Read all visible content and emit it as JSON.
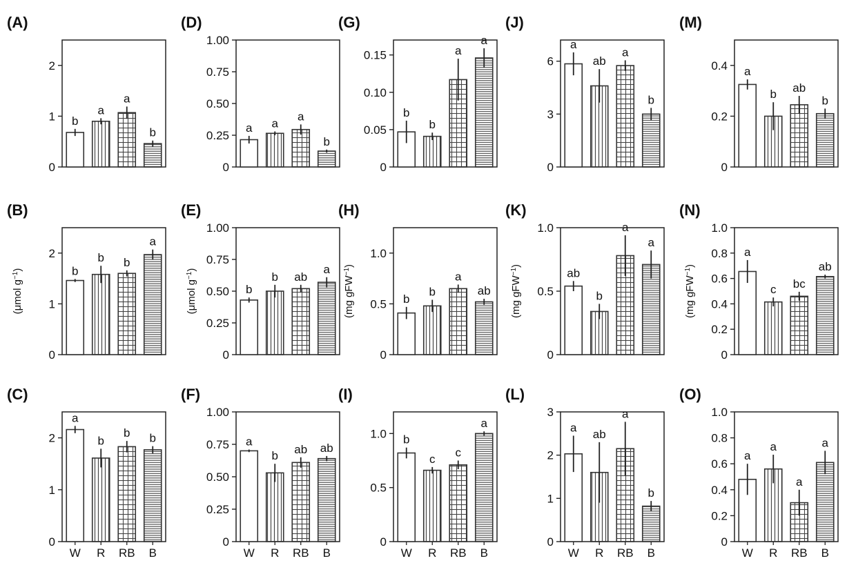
{
  "figure": {
    "categories": [
      "W",
      "R",
      "RB",
      "B"
    ],
    "colors": {
      "axis": "#222222",
      "bar_stroke": "#333333",
      "bar_fill": "#ffffff",
      "pattern": "#444444"
    },
    "bar_patterns": [
      "plain",
      "vertical-lines",
      "grid",
      "horizontal-lines"
    ]
  },
  "chart_data": [
    {
      "panel": "(A)",
      "type": "bar",
      "categories": [
        "W",
        "R",
        "RB",
        "B"
      ],
      "ylim": [
        0,
        2.5
      ],
      "yticks": [
        0,
        1,
        2
      ],
      "ytick_labels": [
        "0",
        "1",
        "2"
      ],
      "ylabel": "",
      "xlabel": "",
      "values": [
        0.68,
        0.9,
        1.07,
        0.46
      ],
      "errors": [
        0.07,
        0.06,
        0.12,
        0.06
      ],
      "letters": [
        "b",
        "a",
        "a",
        "b"
      ]
    },
    {
      "panel": "(B)",
      "type": "bar",
      "categories": [
        "W",
        "R",
        "RB",
        "B"
      ],
      "ylim": [
        0,
        2.5
      ],
      "yticks": [
        0,
        1,
        2
      ],
      "ytick_labels": [
        "0",
        "1",
        "2"
      ],
      "ylabel": "(μmol g−1)",
      "xlabel": "",
      "values": [
        1.46,
        1.58,
        1.6,
        1.97
      ],
      "errors": [
        0.03,
        0.17,
        0.06,
        0.1
      ],
      "letters": [
        "b",
        "b",
        "b",
        "a"
      ]
    },
    {
      "panel": "(C)",
      "type": "bar",
      "categories": [
        "W",
        "R",
        "RB",
        "B"
      ],
      "ylim": [
        0,
        2.5
      ],
      "yticks": [
        0,
        1,
        2
      ],
      "ytick_labels": [
        "0",
        "1",
        "2"
      ],
      "ylabel": "",
      "xlabel": "",
      "values": [
        2.16,
        1.61,
        1.83,
        1.77
      ],
      "errors": [
        0.07,
        0.18,
        0.11,
        0.07
      ],
      "letters": [
        "a",
        "b",
        "b",
        "b"
      ]
    },
    {
      "panel": "(D)",
      "type": "bar",
      "categories": [
        "W",
        "R",
        "RB",
        "B"
      ],
      "ylim": [
        0,
        1.0
      ],
      "yticks": [
        0,
        0.25,
        0.5,
        0.75,
        1.0
      ],
      "ytick_labels": [
        "0",
        "0.25",
        "0.50",
        "0.75",
        "1.00"
      ],
      "ylabel": "",
      "xlabel": "",
      "values": [
        0.215,
        0.265,
        0.295,
        0.125
      ],
      "errors": [
        0.03,
        0.015,
        0.04,
        0.012
      ],
      "letters": [
        "a",
        "a",
        "a",
        "b"
      ]
    },
    {
      "panel": "(E)",
      "type": "bar",
      "categories": [
        "W",
        "R",
        "RB",
        "B"
      ],
      "ylim": [
        0,
        1.0
      ],
      "yticks": [
        0,
        0.25,
        0.5,
        0.75,
        1.0
      ],
      "ytick_labels": [
        "0",
        "0.25",
        "0.50",
        "0.75",
        "1.00"
      ],
      "ylabel": "(μmol g−1)",
      "xlabel": "",
      "values": [
        0.43,
        0.5,
        0.52,
        0.57
      ],
      "errors": [
        0.02,
        0.05,
        0.03,
        0.04
      ],
      "letters": [
        "b",
        "b",
        "ab",
        "a"
      ]
    },
    {
      "panel": "(F)",
      "type": "bar",
      "categories": [
        "W",
        "R",
        "RB",
        "B"
      ],
      "ylim": [
        0,
        1.0
      ],
      "yticks": [
        0,
        0.25,
        0.5,
        0.75,
        1.0
      ],
      "ytick_labels": [
        "0",
        "0.25",
        "0.50",
        "0.75",
        "1.00"
      ],
      "ylabel": "",
      "xlabel": "",
      "values": [
        0.7,
        0.53,
        0.61,
        0.64
      ],
      "errors": [
        0.01,
        0.07,
        0.04,
        0.02
      ],
      "letters": [
        "a",
        "b",
        "ab",
        "ab"
      ]
    },
    {
      "panel": "(G)",
      "type": "bar",
      "categories": [
        "W",
        "R",
        "RB",
        "B"
      ],
      "ylim": [
        0,
        0.17
      ],
      "yticks": [
        0,
        0.05,
        0.1,
        0.15
      ],
      "ytick_labels": [
        "0",
        "0.05",
        "0.10",
        "0.15"
      ],
      "ylabel": "",
      "xlabel": "",
      "values": [
        0.047,
        0.041,
        0.117,
        0.146
      ],
      "errors": [
        0.015,
        0.005,
        0.028,
        0.013
      ],
      "letters": [
        "b",
        "b",
        "a",
        "a"
      ]
    },
    {
      "panel": "(H)",
      "type": "bar",
      "categories": [
        "W",
        "R",
        "RB",
        "B"
      ],
      "ylim": [
        0,
        1.25
      ],
      "yticks": [
        0,
        0.5,
        1.0
      ],
      "ytick_labels": [
        "0",
        "0.5",
        "1.0"
      ],
      "ylabel": "(mg gFW−1)",
      "xlabel": "",
      "values": [
        0.41,
        0.48,
        0.65,
        0.52
      ],
      "errors": [
        0.06,
        0.06,
        0.04,
        0.03
      ],
      "letters": [
        "b",
        "b",
        "a",
        "ab"
      ]
    },
    {
      "panel": "(I)",
      "type": "bar",
      "categories": [
        "W",
        "R",
        "RB",
        "B"
      ],
      "ylim": [
        0,
        1.2
      ],
      "yticks": [
        0,
        0.5,
        1.0
      ],
      "ytick_labels": [
        "0",
        "0.5",
        "1.0"
      ],
      "ylabel": "",
      "xlabel": "",
      "values": [
        0.82,
        0.66,
        0.71,
        1.0
      ],
      "errors": [
        0.05,
        0.03,
        0.04,
        0.02
      ],
      "letters": [
        "b",
        "c",
        "c",
        "a"
      ]
    },
    {
      "panel": "(J)",
      "type": "bar",
      "categories": [
        "W",
        "R",
        "RB",
        "B"
      ],
      "ylim": [
        0,
        7.2
      ],
      "yticks": [
        0,
        3,
        6
      ],
      "ytick_labels": [
        "0",
        "3",
        "6"
      ],
      "ylabel": "",
      "xlabel": "",
      "values": [
        5.85,
        4.6,
        5.75,
        3.0
      ],
      "errors": [
        0.65,
        0.95,
        0.3,
        0.35
      ],
      "letters": [
        "a",
        "ab",
        "a",
        "b"
      ]
    },
    {
      "panel": "(K)",
      "type": "bar",
      "categories": [
        "W",
        "R",
        "RB",
        "B"
      ],
      "ylim": [
        0,
        1.0
      ],
      "yticks": [
        0,
        0.5,
        1.0
      ],
      "ytick_labels": [
        "0",
        "0.5",
        "1.0"
      ],
      "ylabel": "(mg gFW−1)",
      "xlabel": "",
      "values": [
        0.54,
        0.34,
        0.78,
        0.71
      ],
      "errors": [
        0.04,
        0.06,
        0.16,
        0.11
      ],
      "letters": [
        "ab",
        "b",
        "a",
        "a"
      ]
    },
    {
      "panel": "(L)",
      "type": "bar",
      "categories": [
        "W",
        "R",
        "RB",
        "B"
      ],
      "ylim": [
        0,
        3
      ],
      "yticks": [
        0,
        1,
        2,
        3
      ],
      "ytick_labels": [
        "0",
        "1",
        "2",
        "3"
      ],
      "ylabel": "",
      "xlabel": "",
      "values": [
        2.03,
        1.6,
        2.15,
        0.82
      ],
      "errors": [
        0.42,
        0.7,
        0.62,
        0.12
      ],
      "letters": [
        "a",
        "ab",
        "a",
        "b"
      ]
    },
    {
      "panel": "(M)",
      "type": "bar",
      "categories": [
        "W",
        "R",
        "RB",
        "B"
      ],
      "ylim": [
        0,
        0.5
      ],
      "yticks": [
        0,
        0.2,
        0.4
      ],
      "ytick_labels": [
        "0",
        "0.2",
        "0.4"
      ],
      "ylabel": "",
      "xlabel": "",
      "values": [
        0.325,
        0.2,
        0.245,
        0.21
      ],
      "errors": [
        0.02,
        0.055,
        0.035,
        0.02
      ],
      "letters": [
        "a",
        "b",
        "ab",
        "b"
      ]
    },
    {
      "panel": "(N)",
      "type": "bar",
      "categories": [
        "W",
        "R",
        "RB",
        "B"
      ],
      "ylim": [
        0,
        1.0
      ],
      "yticks": [
        0,
        0.2,
        0.4,
        0.6,
        0.8,
        1.0
      ],
      "ytick_labels": [
        "0",
        "0.2",
        "0.4",
        "0.6",
        "0.8",
        "1.0"
      ],
      "ylabel": "(mg gFW−1)",
      "xlabel": "",
      "values": [
        0.655,
        0.415,
        0.46,
        0.615
      ],
      "errors": [
        0.09,
        0.035,
        0.035,
        0.015
      ],
      "letters": [
        "a",
        "c",
        "bc",
        "ab"
      ]
    },
    {
      "panel": "(O)",
      "type": "bar",
      "categories": [
        "W",
        "R",
        "RB",
        "B"
      ],
      "ylim": [
        0,
        1.0
      ],
      "yticks": [
        0,
        0.2,
        0.4,
        0.6,
        0.8,
        1.0
      ],
      "ytick_labels": [
        "0",
        "0.2",
        "0.4",
        "0.6",
        "0.8",
        "1.0"
      ],
      "ylabel": "",
      "xlabel": "",
      "values": [
        0.48,
        0.56,
        0.3,
        0.61
      ],
      "errors": [
        0.12,
        0.11,
        0.1,
        0.09
      ],
      "letters": [
        "a",
        "a",
        "a",
        "a"
      ]
    }
  ]
}
